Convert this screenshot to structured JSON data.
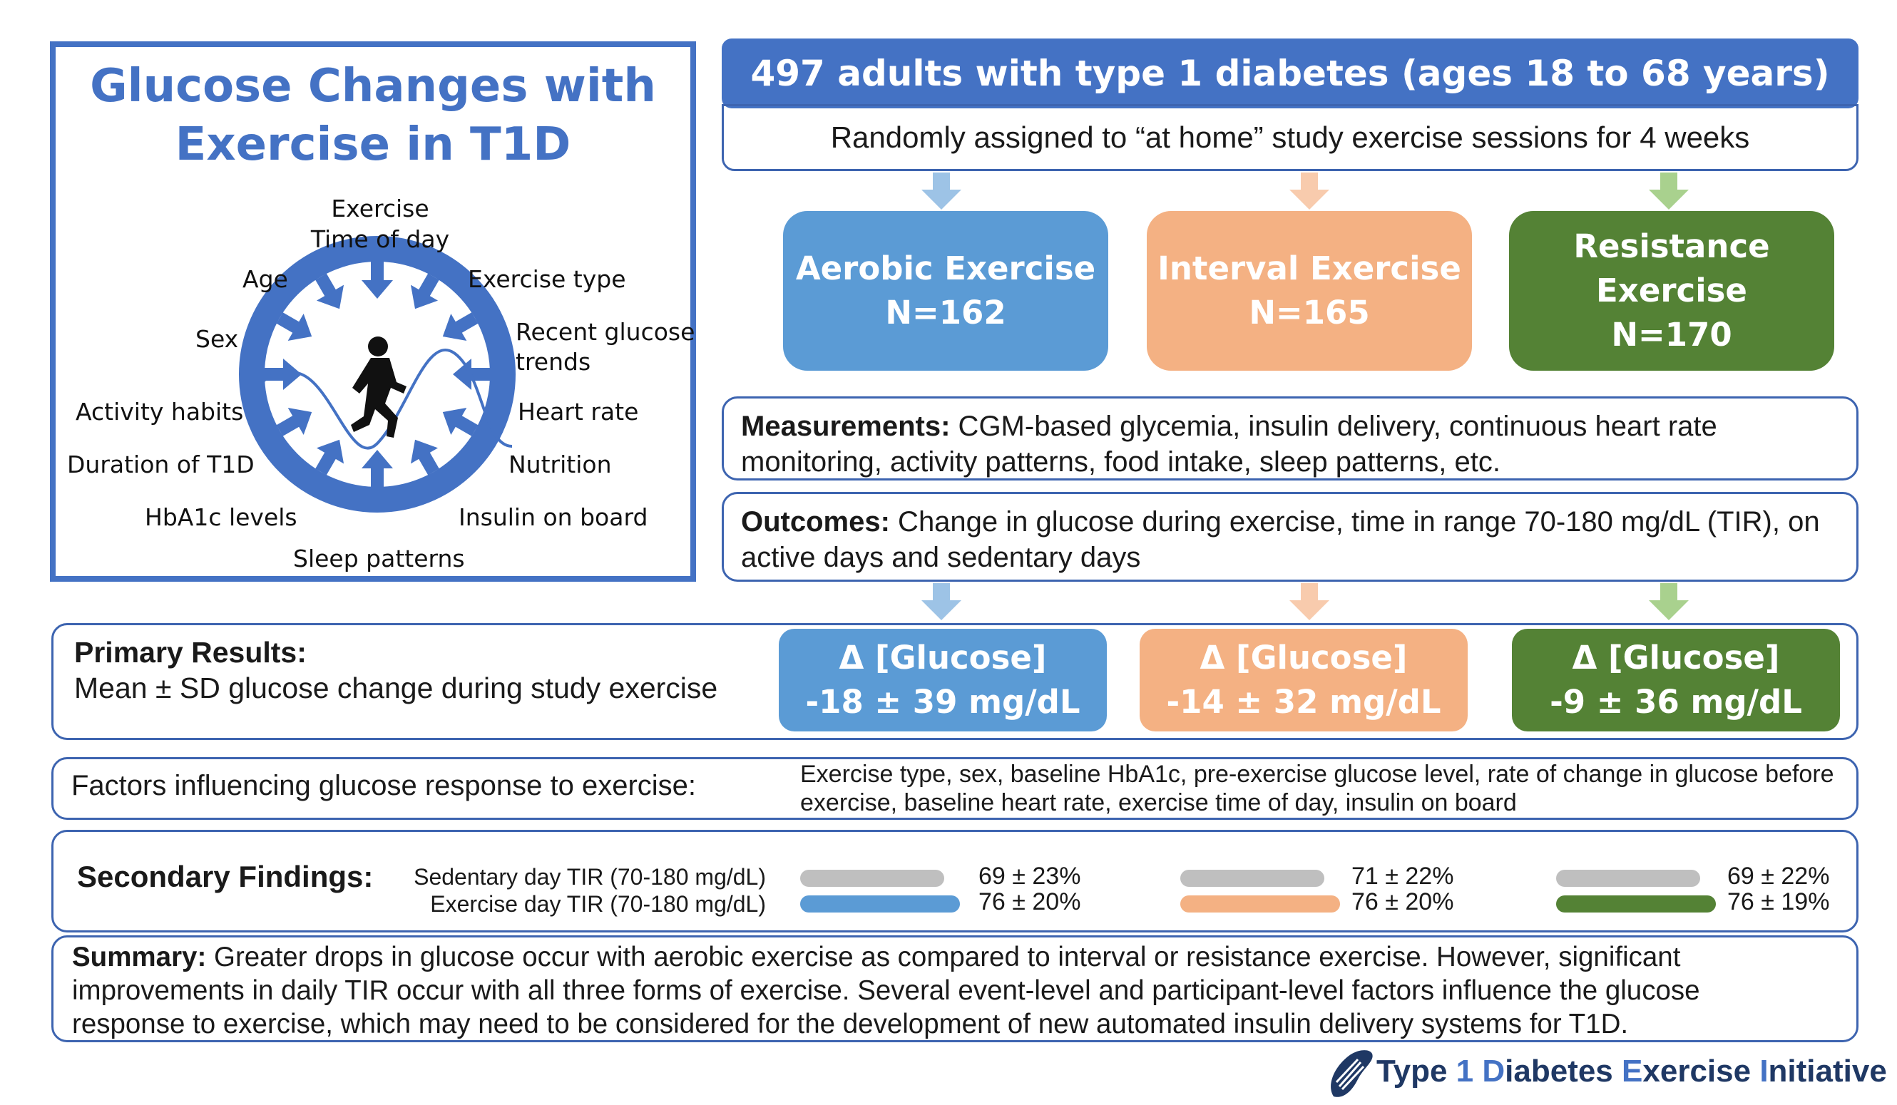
{
  "title_line1": "Glucose Changes with",
  "title_line2": "Exercise in T1D",
  "factors": {
    "exercise_time_1": "Exercise",
    "exercise_time_2": "Time of day",
    "age": "Age",
    "exercise_type": "Exercise type",
    "sex": "Sex",
    "recent_glucose_1": "Recent glucose",
    "recent_glucose_2": "trends",
    "activity_habits": "Activity habits",
    "heart_rate": "Heart rate",
    "duration": "Duration of T1D",
    "nutrition": "Nutrition",
    "hba1c": "HbA1c levels",
    "insulin": "Insulin on board",
    "sleep": "Sleep patterns"
  },
  "header": "497 adults with type 1 diabetes (ages 18 to 68 years)",
  "assignment": "Randomly  assigned to “at home” study exercise sessions for 4 weeks",
  "arms": [
    {
      "name": "Aerobic Exercise",
      "n": "N=162"
    },
    {
      "name": "Interval Exercise",
      "n": "N=165"
    },
    {
      "name_1": "Resistance",
      "name_2": "Exercise",
      "n": "N=170"
    }
  ],
  "measurements_label": "Measurements:",
  "measurements_text_1": " CGM-based glycemia, insulin delivery, continuous heart rate",
  "measurements_text_2": "monitoring, activity patterns, food intake, sleep patterns, etc.",
  "outcomes_label": "Outcomes:",
  "outcomes_text_1": " Change in glucose during exercise, time in range 70-180 mg/dL (TIR), on",
  "outcomes_text_2": "active days and sedentary days",
  "primary_label": "Primary Results:",
  "primary_text": "Mean ± SD glucose change during study exercise",
  "results": [
    {
      "label": "Δ [Glucose]",
      "value": "-18 ± 39 mg/dL"
    },
    {
      "label": "Δ [Glucose]",
      "value": "-14 ± 32 mg/dL"
    },
    {
      "label": "Δ [Glucose]",
      "value": "-9 ± 36 mg/dL"
    }
  ],
  "factors_label": "Factors influencing glucose response to exercise:",
  "factors_text_1": "Exercise type, sex, baseline HbA1c, pre-exercise glucose level, rate of change in glucose before",
  "factors_text_2": "exercise, baseline heart rate, exercise time of day, insulin on board",
  "secondary_label": "Secondary Findings:",
  "sedentary_label": "Sedentary day TIR (70-180 mg/dL)",
  "exercise_label": "Exercise day TIR (70-180 mg/dL)",
  "secondary": [
    {
      "sedentary": "69 ± 23%",
      "exercise": "76 ± 20%"
    },
    {
      "sedentary": "71 ± 22%",
      "exercise": "76 ± 20%"
    },
    {
      "sedentary": "69 ± 22%",
      "exercise": "76 ± 19%"
    }
  ],
  "summary_label": "Summary:",
  "summary_1": " Greater drops in glucose occur with aerobic exercise as compared to interval or resistance exercise. However, significant",
  "summary_2": "improvements in daily TIR occur with all three forms of exercise. Several event-level and participant-level factors influence the glucose",
  "summary_3": "response to exercise, which may need to be considered for the development of new automated insulin delivery systems for T1D.",
  "logo": {
    "w1": "Type ",
    "w2": "1 ",
    "w3": "D",
    "w4": "iabetes ",
    "w5": "E",
    "w6": "xercise ",
    "w7": "I",
    "w8": "nitiative"
  },
  "colors": {
    "blue": "#4472c4",
    "aerobic": "#5b9bd5",
    "interval": "#f4b183",
    "resistance": "#548235",
    "gray": "#bfbfbf"
  }
}
